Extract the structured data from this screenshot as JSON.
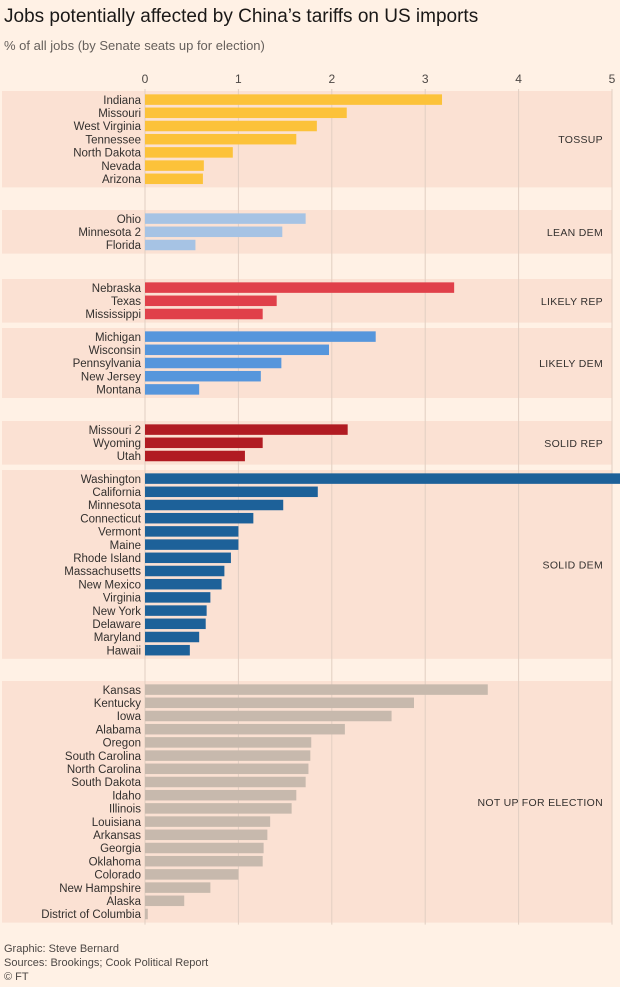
{
  "title": "Jobs potentially affected by China’s tariffs on US imports",
  "subtitle": "% of all jobs (by Senate seats up for election)",
  "footer": {
    "graphic": "Graphic: Steve Bernard",
    "sources": "Sources: Brookings; Cook Political Report",
    "copyright": "© FT"
  },
  "colors": {
    "background": "#fff1e5",
    "panel": "#fbe1d3",
    "grid": "#e2cfc2",
    "tossup": "#fcc23a",
    "lean_dem": "#a6c3e4",
    "likely_rep": "#e0404a",
    "likely_dem": "#5696dc",
    "solid_rep": "#b11b22",
    "solid_dem": "#1d6199",
    "not_up": "#c7b9ad"
  },
  "chart_data": {
    "type": "bar",
    "orientation": "horizontal",
    "xlim": [
      0,
      5
    ],
    "xticks": [
      "0",
      "1",
      "2",
      "3",
      "4",
      "5"
    ],
    "groups": [
      {
        "name": "TOSSUP",
        "color_key": "tossup",
        "categories": [
          "Indiana",
          "Missouri",
          "West Virginia",
          "Tennessee",
          "North Dakota",
          "Nevada",
          "Arizona"
        ],
        "values": [
          3.18,
          2.16,
          1.84,
          1.62,
          0.94,
          0.63,
          0.62
        ]
      },
      {
        "name": "LEAN  DEM",
        "color_key": "lean_dem",
        "categories": [
          "Ohio",
          "Minnesota 2",
          "Florida"
        ],
        "values": [
          1.72,
          1.47,
          0.54
        ]
      },
      {
        "name": "LIKELY REP",
        "color_key": "likely_rep",
        "categories": [
          "Nebraska",
          "Texas",
          "Mississippi"
        ],
        "values": [
          3.31,
          1.41,
          1.26
        ]
      },
      {
        "name": "LIKELY DEM",
        "color_key": "likely_dem",
        "categories": [
          "Michigan",
          "Wisconsin",
          "Pennsylvania",
          "New Jersey",
          "Montana"
        ],
        "values": [
          2.47,
          1.97,
          1.46,
          1.24,
          0.58
        ]
      },
      {
        "name": "SOLID REP",
        "color_key": "solid_rep",
        "categories": [
          "Missouri 2",
          "Wyoming",
          "Utah"
        ],
        "values": [
          2.17,
          1.26,
          1.07
        ]
      },
      {
        "name": "SOLID DEM",
        "color_key": "solid_dem",
        "categories": [
          "Washington",
          "California",
          "Minnesota",
          "Connecticut",
          "Vermont",
          "Maine",
          "Rhode Island",
          "Massachusetts",
          "New Mexico",
          "Virginia",
          "New York",
          "Delaware",
          "Maryland",
          "Hawaii"
        ],
        "values": [
          5.1,
          1.85,
          1.48,
          1.16,
          1.0,
          1.0,
          0.92,
          0.85,
          0.82,
          0.7,
          0.66,
          0.65,
          0.58,
          0.48
        ]
      },
      {
        "name": "NOT UP FOR ELECTION",
        "color_key": "not_up",
        "categories": [
          "Kansas",
          "Kentucky",
          "Iowa",
          "Alabama",
          "Oregon",
          "South Carolina",
          "North Carolina",
          "South Dakota",
          "Idaho",
          "Illinois",
          "Louisiana",
          "Arkansas",
          "Georgia",
          "Oklahoma",
          "Colorado",
          "New Hampshire",
          "Alaska",
          "District of Columbia"
        ],
        "values": [
          3.67,
          2.88,
          2.64,
          2.14,
          1.78,
          1.77,
          1.75,
          1.72,
          1.62,
          1.57,
          1.34,
          1.31,
          1.27,
          1.26,
          1.0,
          0.7,
          0.42,
          0.03
        ]
      }
    ]
  }
}
